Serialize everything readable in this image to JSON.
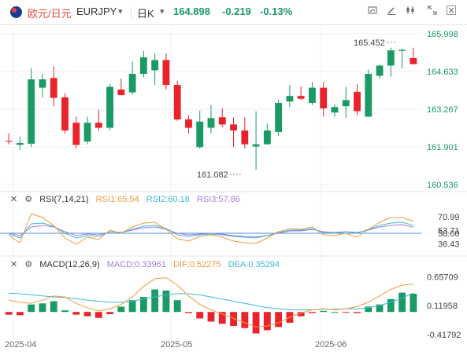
{
  "header": {
    "symbol_cn": "欧元/日元",
    "symbol_code": "EURJPY",
    "period": "日K",
    "last_price": "164.898",
    "change": "-0.219",
    "change_pct": "-0.13%",
    "colors": {
      "up": "#1a9a64",
      "down": "#e8232b"
    }
  },
  "toolbar": {
    "icons": [
      "candle-type-icon",
      "draw-tool-icon",
      "indicator-icon",
      "compare-icon",
      "fullscreen-icon",
      "close-icon"
    ]
  },
  "price_axis": {
    "ticks": [
      "165.998",
      "164.633",
      "163.267",
      "161.901",
      "160.536"
    ]
  },
  "annotations": {
    "high": "165.452",
    "low": "161.082"
  },
  "rsi": {
    "title": "RSI(7,14,21)",
    "rsi1": "RSI1:65.54",
    "rsi2": "RSI2:60.18",
    "rsi3": "RSI3:57.86",
    "ticks": [
      "70.99",
      "53.71",
      "50.00",
      "36.43"
    ]
  },
  "macd": {
    "title": "MACD(12,26,9)",
    "macd": "MACD:0.33961",
    "dif": "DIF:0.52275",
    "dea": "DEA:0.35294",
    "ticks": [
      "0.65709",
      "0.11958",
      "-0.41792"
    ]
  },
  "time_axis": {
    "labels": [
      "2025-04",
      "2025-05",
      "2025-06"
    ]
  },
  "chart_data": {
    "type": "candlestick",
    "ylim": [
      160.4,
      166.2
    ],
    "candles": [
      {
        "o": 162.12,
        "h": 162.4,
        "l": 162.0,
        "c": 162.1
      },
      {
        "o": 161.98,
        "h": 162.28,
        "l": 161.8,
        "c": 162.05
      },
      {
        "o": 162.02,
        "h": 164.75,
        "l": 161.9,
        "c": 164.35
      },
      {
        "o": 164.05,
        "h": 164.55,
        "l": 163.7,
        "c": 164.35
      },
      {
        "o": 164.4,
        "h": 164.82,
        "l": 163.38,
        "c": 163.68
      },
      {
        "o": 163.7,
        "h": 163.85,
        "l": 162.38,
        "c": 162.5
      },
      {
        "o": 162.78,
        "h": 163.0,
        "l": 161.85,
        "c": 161.98
      },
      {
        "o": 162.1,
        "h": 163.0,
        "l": 162.0,
        "c": 162.78
      },
      {
        "o": 162.78,
        "h": 163.25,
        "l": 162.48,
        "c": 162.6
      },
      {
        "o": 162.6,
        "h": 164.18,
        "l": 162.5,
        "c": 164.08
      },
      {
        "o": 163.98,
        "h": 164.38,
        "l": 163.78,
        "c": 163.78
      },
      {
        "o": 163.88,
        "h": 165.0,
        "l": 163.8,
        "c": 164.55
      },
      {
        "o": 164.55,
        "h": 165.38,
        "l": 164.42,
        "c": 165.15
      },
      {
        "o": 164.68,
        "h": 165.3,
        "l": 164.15,
        "c": 165.05
      },
      {
        "o": 165.05,
        "h": 165.3,
        "l": 163.98,
        "c": 164.15
      },
      {
        "o": 164.15,
        "h": 164.3,
        "l": 162.85,
        "c": 162.9
      },
      {
        "o": 162.9,
        "h": 163.05,
        "l": 162.4,
        "c": 162.6
      },
      {
        "o": 161.9,
        "h": 163.22,
        "l": 161.85,
        "c": 162.82
      },
      {
        "o": 162.6,
        "h": 163.42,
        "l": 162.4,
        "c": 162.95
      },
      {
        "o": 162.98,
        "h": 163.3,
        "l": 162.62,
        "c": 162.72
      },
      {
        "o": 162.72,
        "h": 162.98,
        "l": 161.9,
        "c": 162.5
      },
      {
        "o": 162.5,
        "h": 162.98,
        "l": 161.85,
        "c": 162.0
      },
      {
        "o": 161.92,
        "h": 163.2,
        "l": 161.08,
        "c": 162.0
      },
      {
        "o": 162.0,
        "h": 162.75,
        "l": 162.05,
        "c": 162.5
      },
      {
        "o": 162.45,
        "h": 163.62,
        "l": 162.3,
        "c": 163.5
      },
      {
        "o": 163.55,
        "h": 164.15,
        "l": 163.35,
        "c": 163.75
      },
      {
        "o": 163.75,
        "h": 164.1,
        "l": 163.6,
        "c": 163.65
      },
      {
        "o": 163.5,
        "h": 164.25,
        "l": 163.42,
        "c": 164.05
      },
      {
        "o": 164.05,
        "h": 164.25,
        "l": 163.0,
        "c": 163.3
      },
      {
        "o": 163.15,
        "h": 163.45,
        "l": 163.0,
        "c": 163.35
      },
      {
        "o": 163.38,
        "h": 164.08,
        "l": 162.95,
        "c": 163.6
      },
      {
        "o": 163.9,
        "h": 164.18,
        "l": 163.05,
        "c": 163.2
      },
      {
        "o": 163.0,
        "h": 164.7,
        "l": 163.0,
        "c": 164.55
      },
      {
        "o": 164.48,
        "h": 164.88,
        "l": 164.38,
        "c": 164.85
      },
      {
        "o": 164.85,
        "h": 165.5,
        "l": 164.45,
        "c": 165.4
      },
      {
        "o": 165.38,
        "h": 165.45,
        "l": 164.75,
        "c": 165.42
      },
      {
        "o": 165.12,
        "h": 165.5,
        "l": 164.9,
        "c": 164.9
      }
    ],
    "rsi_range": [
      25,
      85
    ],
    "rsi1": [
      47,
      38,
      75,
      70,
      60,
      44,
      36,
      45,
      42,
      54,
      50,
      58,
      63,
      64,
      55,
      43,
      40,
      46,
      48,
      45,
      40,
      38,
      37,
      44,
      52,
      56,
      55,
      58,
      48,
      47,
      50,
      45,
      55,
      64,
      70,
      70,
      65.54
    ],
    "rsi2": [
      49,
      44,
      62,
      63,
      59,
      50,
      44,
      47,
      46,
      52,
      51,
      55,
      59,
      60,
      56,
      48,
      46,
      48,
      49,
      48,
      46,
      45,
      44,
      47,
      51,
      54,
      54,
      56,
      51,
      50,
      52,
      50,
      55,
      60,
      63,
      64,
      60.18
    ],
    "rsi3": [
      50,
      47,
      58,
      60,
      58,
      52,
      47,
      49,
      48,
      52,
      51,
      54,
      57,
      58,
      55,
      50,
      48,
      49,
      50,
      49,
      47,
      46,
      45.5,
      47,
      50,
      53,
      53,
      55,
      52,
      51,
      52,
      51,
      54,
      58,
      60,
      61,
      57.86
    ],
    "macd_range": [
      -0.48,
      0.75
    ],
    "dif": [
      0.22,
      0.18,
      0.16,
      0.22,
      0.3,
      0.28,
      0.16,
      0.08,
      0.02,
      0.06,
      0.14,
      0.28,
      0.48,
      0.62,
      0.64,
      0.5,
      0.3,
      0.14,
      0.04,
      -0.04,
      -0.12,
      -0.2,
      -0.28,
      -0.26,
      -0.2,
      -0.1,
      -0.02,
      0.04,
      0.06,
      0.04,
      0.06,
      0.1,
      0.18,
      0.3,
      0.42,
      0.5,
      0.52275
    ],
    "dea": [
      0.35,
      0.34,
      0.32,
      0.3,
      0.28,
      0.27,
      0.25,
      0.22,
      0.2,
      0.18,
      0.18,
      0.2,
      0.24,
      0.28,
      0.32,
      0.34,
      0.34,
      0.32,
      0.28,
      0.24,
      0.2,
      0.16,
      0.12,
      0.08,
      0.06,
      0.04,
      0.04,
      0.04,
      0.05,
      0.05,
      0.06,
      0.06,
      0.08,
      0.12,
      0.18,
      0.26,
      0.35294
    ],
    "macd_hist": [
      -0.05,
      -0.06,
      0.14,
      0.16,
      0.2,
      0.03,
      -0.05,
      -0.08,
      -0.11,
      -0.04,
      0.1,
      0.22,
      0.28,
      0.42,
      0.4,
      0.22,
      -0.02,
      -0.12,
      -0.18,
      -0.22,
      -0.26,
      -0.3,
      -0.4,
      -0.34,
      -0.28,
      -0.2,
      -0.08,
      -0.02,
      0.02,
      0.0,
      -0.01,
      -0.02,
      0.1,
      0.14,
      0.24,
      0.36,
      0.33961
    ]
  }
}
